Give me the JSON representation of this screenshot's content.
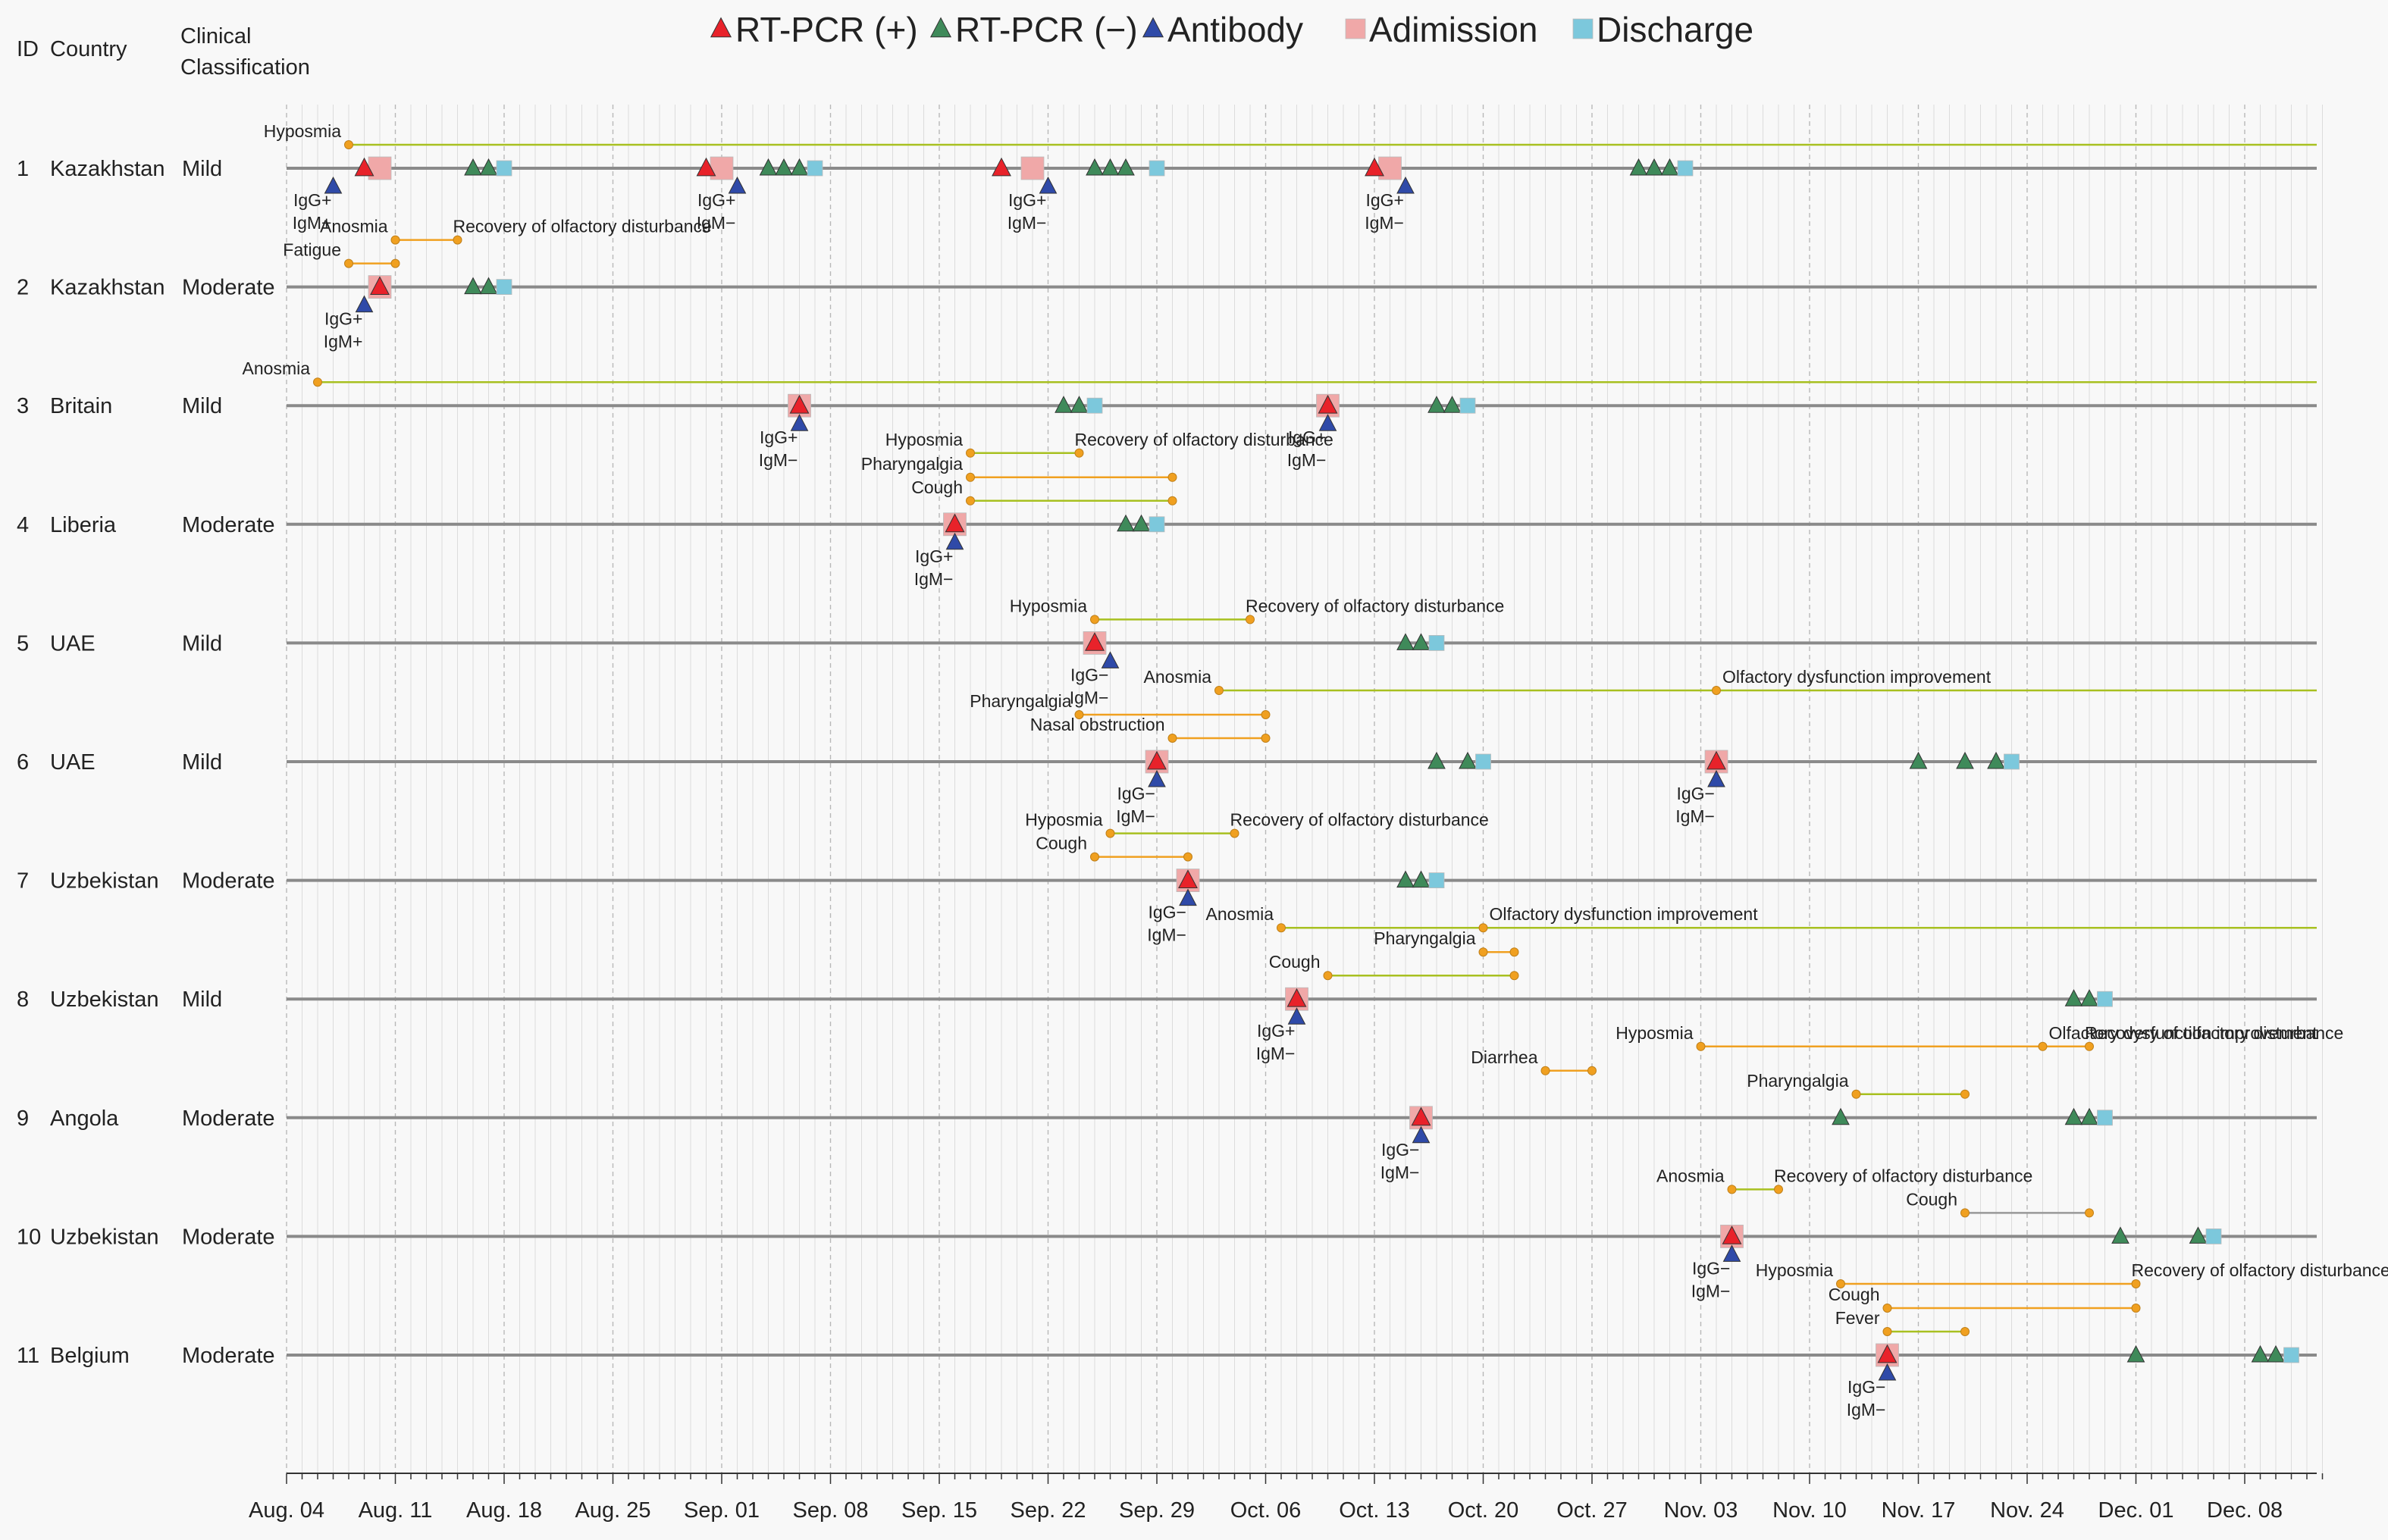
{
  "chart_data": {
    "type": "timeline",
    "x_start": "2020-08-04",
    "x_end": "2020-12-13",
    "x_ticks": [
      "Aug. 04",
      "Aug. 11",
      "Aug. 18",
      "Aug. 25",
      "Sep. 01",
      "Sep. 08",
      "Sep. 15",
      "Sep. 22",
      "Sep. 29",
      "Oct. 06",
      "Oct. 13",
      "Oct. 20",
      "Oct. 27",
      "Nov. 03",
      "Nov. 10",
      "Nov. 17",
      "Nov. 24",
      "Dec. 01",
      "Dec. 08"
    ],
    "x_tick_dates": [
      "2020-08-04",
      "2020-08-11",
      "2020-08-18",
      "2020-08-25",
      "2020-09-01",
      "2020-09-08",
      "2020-09-15",
      "2020-09-22",
      "2020-09-29",
      "2020-10-06",
      "2020-10-13",
      "2020-10-20",
      "2020-10-27",
      "2020-11-03",
      "2020-11-10",
      "2020-11-17",
      "2020-11-24",
      "2020-12-01",
      "2020-12-08"
    ],
    "column_headers": {
      "id": "ID",
      "country": "Country",
      "class_line1": "Clinical",
      "class_line2": "Classification"
    },
    "legend": [
      {
        "label": "RT-PCR (+)",
        "shape": "triangle",
        "color": "#e8222a"
      },
      {
        "label": "RT-PCR (−)",
        "shape": "triangle",
        "color": "#3f8a5a"
      },
      {
        "label": "Antibody",
        "shape": "triangle",
        "color": "#2f4aa8"
      },
      {
        "label": "Adimission",
        "shape": "square",
        "color": "#f0a8a8"
      },
      {
        "label": "Discharge",
        "shape": "square",
        "color": "#7cc8dc"
      }
    ],
    "cases": [
      {
        "id": "1",
        "country": "Kazakhstan",
        "classification": "Mild",
        "events": [
          {
            "type": "adm",
            "date": "2020-08-10"
          },
          {
            "type": "pos",
            "date": "2020-08-09"
          },
          {
            "type": "ab",
            "date": "2020-08-07",
            "line1": "IgG+",
            "line2": "IgM+"
          },
          {
            "type": "neg",
            "date": "2020-08-16"
          },
          {
            "type": "neg",
            "date": "2020-08-17"
          },
          {
            "type": "dis",
            "date": "2020-08-18"
          },
          {
            "type": "adm",
            "date": "2020-09-01"
          },
          {
            "type": "pos",
            "date": "2020-08-31"
          },
          {
            "type": "ab",
            "date": "2020-09-02",
            "line1": "IgG+",
            "line2": "IgM−"
          },
          {
            "type": "neg",
            "date": "2020-09-04"
          },
          {
            "type": "neg",
            "date": "2020-09-05"
          },
          {
            "type": "neg",
            "date": "2020-09-06"
          },
          {
            "type": "dis",
            "date": "2020-09-07"
          },
          {
            "type": "adm",
            "date": "2020-09-21"
          },
          {
            "type": "pos",
            "date": "2020-09-19"
          },
          {
            "type": "ab",
            "date": "2020-09-22",
            "line1": "IgG+",
            "line2": "IgM−"
          },
          {
            "type": "neg",
            "date": "2020-09-25"
          },
          {
            "type": "neg",
            "date": "2020-09-26"
          },
          {
            "type": "neg",
            "date": "2020-09-27"
          },
          {
            "type": "dis",
            "date": "2020-09-29"
          },
          {
            "type": "adm",
            "date": "2020-10-14"
          },
          {
            "type": "pos",
            "date": "2020-10-13"
          },
          {
            "type": "ab",
            "date": "2020-10-15",
            "line1": "IgG+",
            "line2": "IgM−"
          },
          {
            "type": "neg",
            "date": "2020-10-30"
          },
          {
            "type": "neg",
            "date": "2020-10-31"
          },
          {
            "type": "neg",
            "date": "2020-11-01"
          },
          {
            "type": "dis",
            "date": "2020-11-02"
          }
        ],
        "symptoms": [
          {
            "label": "Hyposmia",
            "start": "2020-08-08",
            "end": null,
            "color": "#a8c020"
          }
        ]
      },
      {
        "id": "2",
        "country": "Kazakhstan",
        "classification": "Moderate",
        "events": [
          {
            "type": "adm",
            "date": "2020-08-10"
          },
          {
            "type": "pos",
            "date": "2020-08-10"
          },
          {
            "type": "ab",
            "date": "2020-08-09",
            "line1": "IgG+",
            "line2": "IgM+"
          },
          {
            "type": "neg",
            "date": "2020-08-16"
          },
          {
            "type": "neg",
            "date": "2020-08-17"
          },
          {
            "type": "dis",
            "date": "2020-08-18"
          }
        ],
        "symptoms": [
          {
            "label": "Anosmia",
            "start": "2020-08-11",
            "end": "2020-08-15",
            "end_label": "Recovery of olfactory disturbance",
            "color": "#f0a020"
          },
          {
            "label": "Fatigue",
            "start": "2020-08-08",
            "end": "2020-08-11",
            "color": "#f0a020"
          }
        ]
      },
      {
        "id": "3",
        "country": "Britain",
        "classification": "Mild",
        "events": [
          {
            "type": "adm",
            "date": "2020-09-06"
          },
          {
            "type": "pos",
            "date": "2020-09-06"
          },
          {
            "type": "ab",
            "date": "2020-09-06",
            "line1": "IgG+",
            "line2": "IgM−"
          },
          {
            "type": "neg",
            "date": "2020-09-23"
          },
          {
            "type": "neg",
            "date": "2020-09-24"
          },
          {
            "type": "dis",
            "date": "2020-09-25"
          },
          {
            "type": "adm",
            "date": "2020-10-10"
          },
          {
            "type": "pos",
            "date": "2020-10-10"
          },
          {
            "type": "ab",
            "date": "2020-10-10",
            "line1": "IgG+",
            "line2": "IgM−"
          },
          {
            "type": "neg",
            "date": "2020-10-17"
          },
          {
            "type": "neg",
            "date": "2020-10-18"
          },
          {
            "type": "dis",
            "date": "2020-10-19"
          }
        ],
        "symptoms": [
          {
            "label": "Anosmia",
            "start": "2020-08-06",
            "end": null,
            "color": "#a8c020"
          }
        ]
      },
      {
        "id": "4",
        "country": "Liberia",
        "classification": "Moderate",
        "events": [
          {
            "type": "adm",
            "date": "2020-09-16"
          },
          {
            "type": "pos",
            "date": "2020-09-16"
          },
          {
            "type": "ab",
            "date": "2020-09-16",
            "line1": "IgG+",
            "line2": "IgM−"
          },
          {
            "type": "neg",
            "date": "2020-09-27"
          },
          {
            "type": "neg",
            "date": "2020-09-28"
          },
          {
            "type": "dis",
            "date": "2020-09-29"
          }
        ],
        "symptoms": [
          {
            "label": "Hyposmia",
            "start": "2020-09-17",
            "end": "2020-09-24",
            "end_label": "Recovery of olfactory disturbance",
            "color": "#a8c020"
          },
          {
            "label": "Pharyngalgia",
            "start": "2020-09-17",
            "end": "2020-09-30",
            "color": "#f0a020"
          },
          {
            "label": "Cough",
            "start": "2020-09-17",
            "end": "2020-09-30",
            "color": "#a8c020"
          }
        ]
      },
      {
        "id": "5",
        "country": "UAE",
        "classification": "Mild",
        "events": [
          {
            "type": "adm",
            "date": "2020-09-25"
          },
          {
            "type": "pos",
            "date": "2020-09-25"
          },
          {
            "type": "ab",
            "date": "2020-09-26",
            "line1": "IgG−",
            "line2": "IgM−"
          },
          {
            "type": "neg",
            "date": "2020-10-15"
          },
          {
            "type": "neg",
            "date": "2020-10-16"
          },
          {
            "type": "dis",
            "date": "2020-10-17"
          }
        ],
        "symptoms": [
          {
            "label": "Hyposmia",
            "start": "2020-09-25",
            "end": "2020-10-05",
            "end_label": "Recovery of olfactory disturbance",
            "color": "#a8c020"
          }
        ]
      },
      {
        "id": "6",
        "country": "UAE",
        "classification": "Mild",
        "events": [
          {
            "type": "adm",
            "date": "2020-09-29"
          },
          {
            "type": "pos",
            "date": "2020-09-29"
          },
          {
            "type": "ab",
            "date": "2020-09-29",
            "line1": "IgG−",
            "line2": "IgM−"
          },
          {
            "type": "neg",
            "date": "2020-10-17"
          },
          {
            "type": "neg",
            "date": "2020-10-19"
          },
          {
            "type": "dis",
            "date": "2020-10-20"
          },
          {
            "type": "adm",
            "date": "2020-11-04"
          },
          {
            "type": "pos",
            "date": "2020-11-04"
          },
          {
            "type": "ab",
            "date": "2020-11-04",
            "line1": "IgG−",
            "line2": "IgM−"
          },
          {
            "type": "neg",
            "date": "2020-11-17"
          },
          {
            "type": "neg",
            "date": "2020-11-20"
          },
          {
            "type": "neg",
            "date": "2020-11-22"
          },
          {
            "type": "dis",
            "date": "2020-11-23"
          }
        ],
        "symptoms": [
          {
            "label": "Anosmia",
            "start": "2020-10-03",
            "end": null,
            "mid": "2020-11-04",
            "mid_label": "Olfactory dysfunction improvement",
            "color": "#a8c020"
          },
          {
            "label": "Pharyngalgia",
            "start": "2020-09-24",
            "end": "2020-10-06",
            "color": "#f0a020"
          },
          {
            "label": "Nasal obstruction",
            "start": "2020-09-30",
            "end": "2020-10-06",
            "color": "#f0a020"
          }
        ]
      },
      {
        "id": "7",
        "country": "Uzbekistan",
        "classification": "Moderate",
        "events": [
          {
            "type": "adm",
            "date": "2020-10-01"
          },
          {
            "type": "pos",
            "date": "2020-10-01"
          },
          {
            "type": "ab",
            "date": "2020-10-01",
            "line1": "IgG−",
            "line2": "IgM−"
          },
          {
            "type": "neg",
            "date": "2020-10-15"
          },
          {
            "type": "neg",
            "date": "2020-10-16"
          },
          {
            "type": "dis",
            "date": "2020-10-17"
          }
        ],
        "symptoms": [
          {
            "label": "Hyposmia",
            "start": "2020-09-26",
            "end": "2020-10-04",
            "end_label": "Recovery of olfactory disturbance",
            "color": "#a8c020"
          },
          {
            "label": "Cough",
            "start": "2020-09-25",
            "end": "2020-10-01",
            "color": "#f0a020"
          }
        ]
      },
      {
        "id": "8",
        "country": "Uzbekistan",
        "classification": "Mild",
        "events": [
          {
            "type": "adm",
            "date": "2020-10-08"
          },
          {
            "type": "pos",
            "date": "2020-10-08"
          },
          {
            "type": "ab",
            "date": "2020-10-08",
            "line1": "IgG+",
            "line2": "IgM−"
          },
          {
            "type": "neg",
            "date": "2020-11-27"
          },
          {
            "type": "neg",
            "date": "2020-11-28"
          },
          {
            "type": "dis",
            "date": "2020-11-29"
          }
        ],
        "symptoms": [
          {
            "label": "Anosmia",
            "start": "2020-10-07",
            "end": null,
            "mid": "2020-10-20",
            "mid_label": "Olfactory dysfunction improvement",
            "color": "#a8c020"
          },
          {
            "label": "Pharyngalgia",
            "start": "2020-10-20",
            "end": "2020-10-22",
            "color": "#f0a020"
          },
          {
            "label": "Cough",
            "start": "2020-10-10",
            "end": "2020-10-22",
            "color": "#a8c020"
          }
        ]
      },
      {
        "id": "9",
        "country": "Angola",
        "classification": "Moderate",
        "events": [
          {
            "type": "adm",
            "date": "2020-10-16"
          },
          {
            "type": "pos",
            "date": "2020-10-16"
          },
          {
            "type": "ab",
            "date": "2020-10-16",
            "line1": "IgG−",
            "line2": "IgM−"
          },
          {
            "type": "neg",
            "date": "2020-11-12"
          },
          {
            "type": "neg",
            "date": "2020-11-27"
          },
          {
            "type": "neg",
            "date": "2020-11-28"
          },
          {
            "type": "dis",
            "date": "2020-11-29"
          }
        ],
        "symptoms": [
          {
            "label": "Hyposmia",
            "start": "2020-11-03",
            "end": "2020-11-28",
            "mid": "2020-11-25",
            "mid_label": "Olfactory dysfunction improvement",
            "end_label": "Recovery of olfactory disturbance",
            "color": "#f0a020"
          },
          {
            "label": "Diarrhea",
            "start": "2020-10-24",
            "end": "2020-10-27",
            "color": "#f0a020"
          },
          {
            "label": "Pharyngalgia",
            "start": "2020-11-13",
            "end": "2020-11-20",
            "color": "#a8c020"
          }
        ]
      },
      {
        "id": "10",
        "country": "Uzbekistan",
        "classification": "Moderate",
        "events": [
          {
            "type": "adm",
            "date": "2020-11-05"
          },
          {
            "type": "pos",
            "date": "2020-11-05"
          },
          {
            "type": "ab",
            "date": "2020-11-05",
            "line1": "IgG−",
            "line2": "IgM−"
          },
          {
            "type": "neg",
            "date": "2020-11-30"
          },
          {
            "type": "neg",
            "date": "2020-12-05"
          },
          {
            "type": "dis",
            "date": "2020-12-06"
          }
        ],
        "symptoms": [
          {
            "label": "Anosmia",
            "start": "2020-11-05",
            "end": "2020-11-08",
            "end_label": "Recovery of olfactory disturbance",
            "color": "#a8c020"
          },
          {
            "label": "Cough",
            "start": "2020-11-20",
            "end": "2020-11-28",
            "color": "#999999"
          }
        ]
      },
      {
        "id": "11",
        "country": "Belgium",
        "classification": "Moderate",
        "events": [
          {
            "type": "adm",
            "date": "2020-11-15"
          },
          {
            "type": "pos",
            "date": "2020-11-15"
          },
          {
            "type": "ab",
            "date": "2020-11-15",
            "line1": "IgG−",
            "line2": "IgM−"
          },
          {
            "type": "neg",
            "date": "2020-12-01"
          },
          {
            "type": "neg",
            "date": "2020-12-09"
          },
          {
            "type": "neg",
            "date": "2020-12-10"
          },
          {
            "type": "dis",
            "date": "2020-12-11"
          }
        ],
        "symptoms": [
          {
            "label": "Hyposmia",
            "start": "2020-11-12",
            "end": "2020-12-01",
            "end_label": "Recovery of olfactory disturbance",
            "color": "#f0a020"
          },
          {
            "label": "Cough",
            "start": "2020-11-15",
            "end": "2020-12-01",
            "color": "#f0a020"
          },
          {
            "label": "Fever",
            "start": "2020-11-15",
            "end": "2020-11-20",
            "color": "#a8c020"
          }
        ]
      }
    ]
  }
}
